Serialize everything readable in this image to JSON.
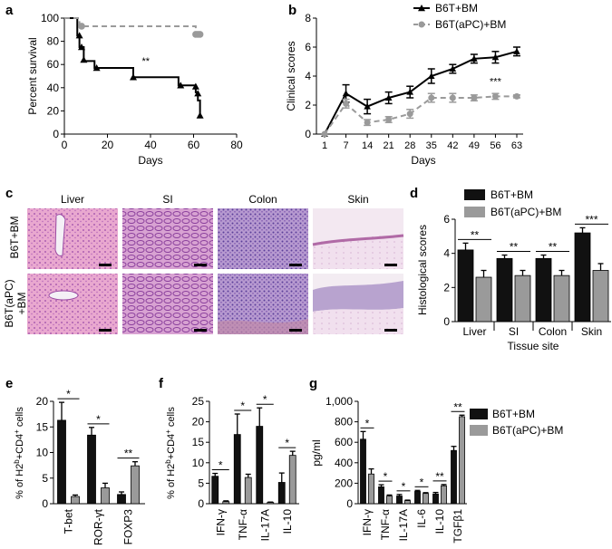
{
  "colors": {
    "black": "#000000",
    "gray": "#9a9a9a",
    "dark": "#111111"
  },
  "chart_data": [
    {
      "panel": "a",
      "type": "line",
      "xlabel": "Days",
      "ylabel": "Percent survival",
      "xlim": [
        0,
        80
      ],
      "ylim": [
        0,
        100
      ],
      "xticks": [
        0,
        20,
        40,
        60,
        80
      ],
      "yticks": [
        0,
        20,
        40,
        60,
        80,
        100
      ],
      "annotation": "**",
      "series": [
        {
          "name": "B6T+BM",
          "style": "solid-black",
          "steps": [
            [
              0,
              100
            ],
            [
              6,
              100
            ],
            [
              6,
              85
            ],
            [
              7,
              85
            ],
            [
              7,
              75
            ],
            [
              9,
              75
            ],
            [
              9,
              63
            ],
            [
              14,
              63
            ],
            [
              14,
              57
            ],
            [
              32,
              57
            ],
            [
              32,
              49
            ],
            [
              53,
              49
            ],
            [
              53,
              42
            ],
            [
              61,
              42
            ],
            [
              61,
              36
            ],
            [
              62,
              36
            ],
            [
              62,
              29
            ],
            [
              63,
              29
            ],
            [
              63,
              16
            ]
          ],
          "markers": [
            [
              7,
              85
            ],
            [
              8,
              75
            ],
            [
              9,
              64
            ],
            [
              15,
              57
            ],
            [
              32,
              49
            ],
            [
              54,
              42
            ],
            [
              61,
              41
            ],
            [
              62,
              35
            ],
            [
              63,
              16
            ]
          ]
        },
        {
          "name": "B6T(aPC)+BM",
          "style": "dashed-gray",
          "steps": [
            [
              0,
              100
            ],
            [
              7,
              100
            ],
            [
              7,
              93
            ],
            [
              61,
              93
            ],
            [
              61,
              86
            ],
            [
              63,
              86
            ]
          ],
          "markers": [
            [
              8,
              93
            ],
            [
              61,
              86
            ],
            [
              62,
              86
            ],
            [
              63,
              86
            ]
          ]
        }
      ]
    },
    {
      "panel": "b",
      "type": "line",
      "xlabel": "Days",
      "ylabel": "Clinical scores",
      "categories": [
        "1",
        "7",
        "14",
        "21",
        "28",
        "35",
        "42",
        "49",
        "56",
        "63"
      ],
      "ylim": [
        0,
        8
      ],
      "yticks": [
        0,
        2,
        4,
        6,
        8
      ],
      "annotation": "***",
      "series": [
        {
          "name": "B6T+BM",
          "values": [
            0,
            2.8,
            1.9,
            2.5,
            2.9,
            4.0,
            4.5,
            5.2,
            5.3,
            5.7
          ],
          "errors": [
            0,
            0.6,
            0.5,
            0.4,
            0.4,
            0.5,
            0.3,
            0.3,
            0.4,
            0.3
          ]
        },
        {
          "name": "B6T(aPC)+BM",
          "values": [
            0,
            2.1,
            0.8,
            1.0,
            1.4,
            2.5,
            2.5,
            2.5,
            2.6,
            2.6
          ],
          "errors": [
            0,
            0.3,
            0.2,
            0.2,
            0.3,
            0.3,
            0.3,
            0.2,
            0.2,
            0.1
          ]
        }
      ]
    },
    {
      "panel": "d",
      "type": "bar",
      "xlabel": "Tissue site",
      "ylabel": "Histological scores",
      "categories": [
        "Liver",
        "SI",
        "Colon",
        "Skin"
      ],
      "ylim": [
        0,
        6
      ],
      "yticks": [
        0,
        2,
        4,
        6
      ],
      "significance": [
        "**",
        "**",
        "**",
        "***"
      ],
      "series": [
        {
          "name": "B6T+BM",
          "values": [
            4.2,
            3.7,
            3.7,
            5.2
          ],
          "errors": [
            0.4,
            0.2,
            0.2,
            0.3
          ]
        },
        {
          "name": "B6T(aPC)+BM",
          "values": [
            2.6,
            2.7,
            2.7,
            3.0
          ],
          "errors": [
            0.4,
            0.3,
            0.3,
            0.4
          ]
        }
      ]
    },
    {
      "panel": "e",
      "type": "bar",
      "ylabel_parts": [
        "% of H2",
        "b",
        "+CD4",
        "+",
        " cells"
      ],
      "categories": [
        "T-bet",
        "ROR-γt",
        "FOXP3"
      ],
      "ylim": [
        0,
        20
      ],
      "yticks": [
        0,
        5,
        10,
        15,
        20
      ],
      "significance": [
        "*",
        "*",
        "**"
      ],
      "series": [
        {
          "name": "B6T+BM",
          "values": [
            16.3,
            13.4,
            1.8
          ],
          "errors": [
            3.5,
            1.5,
            0.5
          ]
        },
        {
          "name": "B6T(aPC)+BM",
          "values": [
            1.4,
            3.1,
            7.4
          ],
          "errors": [
            0.3,
            0.9,
            0.8
          ]
        }
      ]
    },
    {
      "panel": "f",
      "type": "bar",
      "ylabel_parts": [
        "% of H2",
        "b",
        "+CD4",
        "+",
        " cells"
      ],
      "categories": [
        "IFN-γ",
        "TNF-α",
        "IL-17A",
        "IL-10"
      ],
      "ylim": [
        0,
        25
      ],
      "yticks": [
        0,
        5,
        10,
        15,
        20,
        25
      ],
      "significance": [
        "*",
        "*",
        "*",
        "*"
      ],
      "series": [
        {
          "name": "B6T+BM",
          "values": [
            6.7,
            16.9,
            18.9,
            5.2
          ],
          "errors": [
            0.7,
            5.0,
            4.5,
            2.3
          ]
        },
        {
          "name": "B6T(aPC)+BM",
          "values": [
            0.5,
            6.4,
            0.3,
            11.8
          ],
          "errors": [
            0.2,
            0.8,
            0.1,
            1.0
          ]
        }
      ]
    },
    {
      "panel": "g",
      "type": "bar",
      "ylabel": "pg/ml",
      "categories": [
        "IFN-γ",
        "TNF-α",
        "IL-17A",
        "IL-6",
        "IL-10",
        "TGFβ1"
      ],
      "ylim": [
        0,
        1000
      ],
      "yticks": [
        0,
        200,
        400,
        600,
        800,
        1000
      ],
      "ytick_labels": [
        "0",
        "200",
        "400",
        "600",
        "800",
        "1,000"
      ],
      "significance": [
        "*",
        "*",
        "*",
        "*",
        "**",
        "**"
      ],
      "legend": [
        "B6T+BM",
        "B6T(aPC)+BM"
      ],
      "series": [
        {
          "name": "B6T+BM",
          "values": [
            630,
            165,
            75,
            120,
            95,
            520
          ],
          "errors": [
            75,
            20,
            15,
            10,
            15,
            40
          ]
        },
        {
          "name": "B6T(aPC)+BM",
          "values": [
            290,
            75,
            30,
            100,
            175,
            850
          ],
          "errors": [
            50,
            10,
            5,
            8,
            12,
            15
          ]
        }
      ]
    }
  ],
  "panel_c": {
    "letter": "c",
    "columns": [
      "Liver",
      "SI",
      "Colon",
      "Skin"
    ],
    "rows": [
      "B6T+BM",
      "B6T(aPC)\n+BM"
    ]
  },
  "legends": {
    "b": [
      "B6T+BM",
      "B6T(aPC)+BM"
    ],
    "d": [
      "B6T+BM",
      "B6T(aPC)+BM"
    ],
    "g": [
      "B6T+BM",
      "B6T(aPC)+BM"
    ]
  }
}
